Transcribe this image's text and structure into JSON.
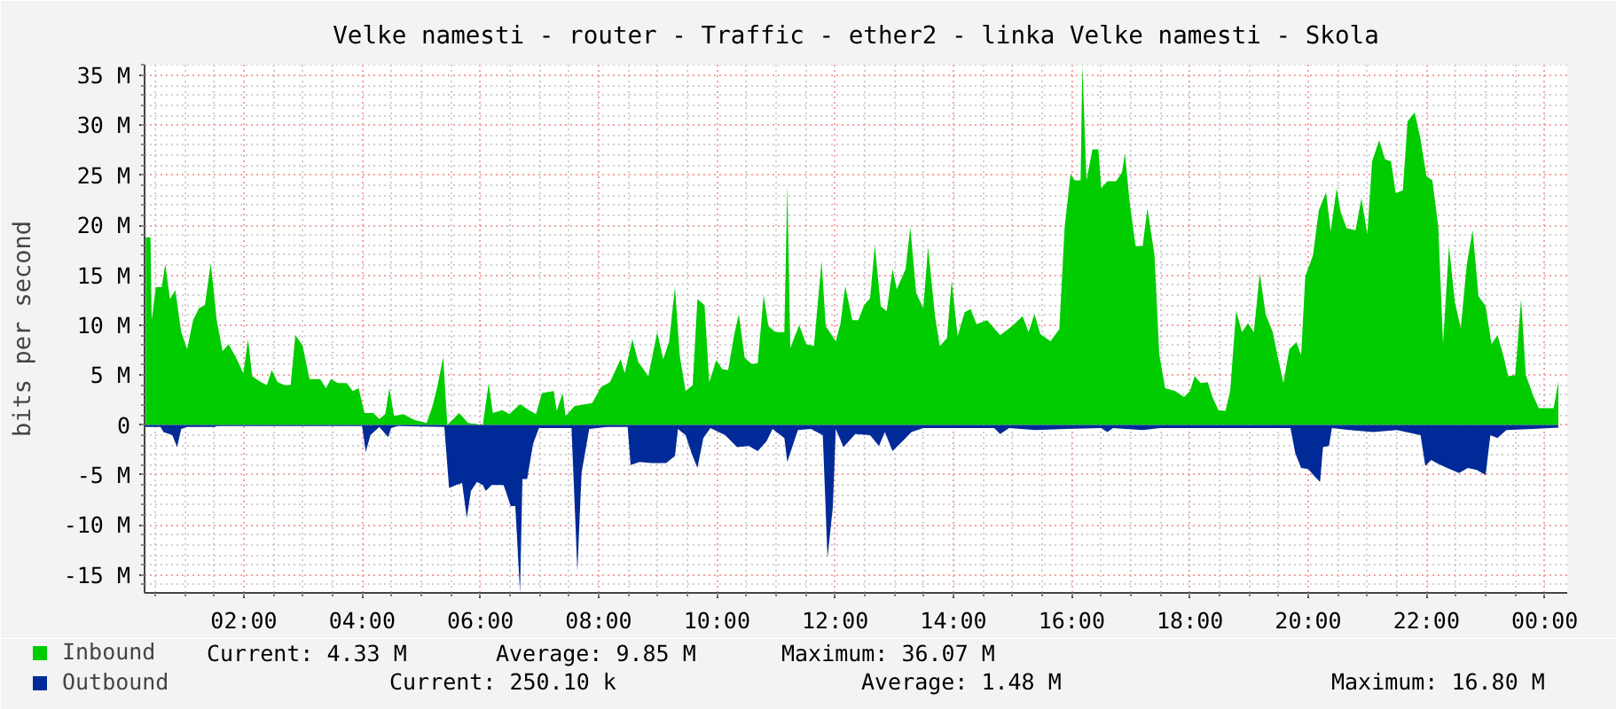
{
  "chart_data": {
    "type": "area",
    "title": "Velke namesti - router - Traffic - ether2 - linka Velke namesti - Skola",
    "ylabel": "bits per second",
    "xlim": [
      0.32,
      24.38
    ],
    "ylim": [
      -16.8,
      36.07
    ],
    "xticks": [
      {
        "value": 2,
        "label": "02:00"
      },
      {
        "value": 4,
        "label": "04:00"
      },
      {
        "value": 6,
        "label": "06:00"
      },
      {
        "value": 8,
        "label": "08:00"
      },
      {
        "value": 10,
        "label": "10:00"
      },
      {
        "value": 12,
        "label": "12:00"
      },
      {
        "value": 14,
        "label": "14:00"
      },
      {
        "value": 16,
        "label": "16:00"
      },
      {
        "value": 18,
        "label": "18:00"
      },
      {
        "value": 20,
        "label": "20:00"
      },
      {
        "value": 22,
        "label": "22:00"
      },
      {
        "value": 24,
        "label": "00:00"
      }
    ],
    "yticks": [
      {
        "value": -15,
        "label": "-15 M"
      },
      {
        "value": -10,
        "label": "-10 M"
      },
      {
        "value": -5,
        "label": "-5 M"
      },
      0,
      {
        "value": 5,
        "label": "5 M"
      },
      {
        "value": 10,
        "label": "10 M"
      },
      {
        "value": 15,
        "label": "15 M"
      },
      {
        "value": 20,
        "label": "20 M"
      },
      {
        "value": 25,
        "label": "25 M"
      },
      {
        "value": 30,
        "label": "30 M"
      },
      {
        "value": 35,
        "label": "35 M"
      }
    ],
    "grid": true,
    "legend": "bottom left",
    "series": [
      {
        "name": "Inbound",
        "color": "#00cc00",
        "x": [
          0.34,
          0.42,
          0.44,
          0.51,
          0.61,
          0.67,
          0.75,
          0.84,
          0.94,
          1.04,
          1.14,
          1.24,
          1.34,
          1.44,
          1.54,
          1.64,
          1.74,
          1.87,
          1.99,
          2.07,
          2.14,
          2.29,
          2.39,
          2.47,
          2.57,
          2.69,
          2.79,
          2.87,
          2.99,
          3.11,
          3.29,
          3.39,
          3.47,
          3.59,
          3.74,
          3.84,
          3.94,
          4.04,
          4.19,
          4.29,
          4.39,
          4.46,
          4.54,
          4.69,
          4.89,
          5.09,
          5.19,
          5.27,
          5.37,
          5.44,
          5.64,
          5.79,
          6.04,
          6.14,
          6.21,
          6.37,
          6.49,
          6.67,
          6.82,
          6.94,
          7.04,
          7.24,
          7.29,
          7.39,
          7.44,
          7.59,
          7.89,
          8.04,
          8.19,
          8.37,
          8.44,
          8.57,
          8.67,
          8.84,
          8.99,
          9.09,
          9.19,
          9.29,
          9.37,
          9.47,
          9.59,
          9.67,
          9.79,
          9.87,
          9.99,
          10.09,
          10.19,
          10.29,
          10.37,
          10.47,
          10.59,
          10.69,
          10.79,
          10.87,
          10.99,
          11.14,
          11.19,
          11.24,
          11.39,
          11.51,
          11.64,
          11.77,
          11.84,
          12.01,
          12.09,
          12.17,
          12.29,
          12.39,
          12.49,
          12.59,
          12.67,
          12.77,
          12.87,
          12.97,
          13.04,
          13.19,
          13.27,
          13.37,
          13.49,
          13.57,
          13.69,
          13.77,
          13.89,
          13.97,
          14.07,
          14.19,
          14.29,
          14.39,
          14.57,
          14.79,
          14.99,
          15.17,
          15.27,
          15.37,
          15.47,
          15.64,
          15.79,
          15.88,
          15.98,
          16.05,
          16.15,
          16.18,
          16.25,
          16.35,
          16.45,
          16.5,
          16.6,
          16.75,
          16.85,
          16.9,
          16.98,
          17.08,
          17.2,
          17.28,
          17.4,
          17.48,
          17.58,
          17.75,
          17.9,
          18.0,
          18.08,
          18.18,
          18.3,
          18.38,
          18.48,
          18.6,
          18.68,
          18.78,
          18.88,
          18.98,
          19.08,
          19.18,
          19.28,
          19.4,
          19.5,
          19.58,
          19.68,
          19.8,
          19.88,
          19.95,
          20.08,
          20.18,
          20.3,
          20.38,
          20.48,
          20.55,
          20.65,
          20.8,
          20.9,
          21.0,
          21.08,
          21.2,
          21.3,
          21.4,
          21.48,
          21.6,
          21.68,
          21.8,
          21.9,
          22.0,
          22.1,
          22.2,
          22.28,
          22.38,
          22.48,
          22.58,
          22.68,
          22.78,
          22.88,
          23.0,
          23.1,
          23.2,
          23.3,
          23.38,
          23.5,
          23.6,
          23.68,
          23.8,
          23.9,
          24.05,
          24.15,
          24.23
        ],
        "values": [
          18.8,
          18.8,
          10.5,
          13.8,
          13.8,
          16.1,
          12.6,
          13.5,
          9.3,
          7.6,
          10.5,
          11.7,
          12.0,
          16.2,
          10.5,
          7.4,
          8.1,
          6.7,
          5.2,
          8.6,
          4.9,
          4.3,
          4.0,
          5.5,
          4.3,
          4.0,
          4.0,
          9.0,
          8.0,
          4.6,
          4.6,
          3.7,
          4.6,
          4.2,
          4.2,
          3.4,
          3.7,
          1.2,
          1.2,
          0.6,
          1.1,
          3.7,
          0.9,
          1.1,
          0.5,
          0.2,
          1.9,
          3.8,
          6.8,
          0,
          1.2,
          0.2,
          0,
          4.2,
          1.2,
          1.5,
          1.1,
          2.1,
          1.5,
          1.1,
          3.2,
          3.4,
          1.4,
          3.2,
          0.9,
          1.9,
          2.2,
          3.8,
          4.3,
          6.6,
          5.2,
          8.6,
          6.3,
          4.9,
          9.3,
          6.6,
          8.3,
          13.8,
          7.0,
          3.4,
          4.0,
          12.6,
          12.0,
          4.3,
          6.5,
          5.6,
          5.5,
          9.0,
          11.1,
          6.7,
          6.1,
          6.2,
          13.0,
          9.9,
          9.3,
          9.3,
          24.1,
          7.7,
          10.0,
          8.1,
          7.9,
          16.4,
          9.9,
          8.4,
          10.2,
          13.9,
          10.5,
          10.5,
          12.0,
          12.7,
          18.0,
          11.9,
          11.4,
          15.6,
          13.6,
          15.6,
          19.8,
          13.2,
          11.7,
          17.8,
          10.8,
          7.9,
          8.7,
          14.5,
          8.9,
          11.3,
          11.6,
          10.1,
          10.5,
          9.0,
          9.9,
          10.9,
          9.3,
          11.1,
          9.1,
          8.4,
          9.6,
          19.8,
          25.1,
          24.5,
          24.5,
          36.07,
          24.5,
          27.6,
          27.6,
          23.7,
          24.4,
          24.4,
          25.3,
          27.2,
          22.3,
          17.9,
          17.9,
          21.7,
          17.0,
          7.1,
          3.7,
          3.4,
          2.8,
          3.4,
          4.9,
          4.2,
          4.3,
          2.8,
          1.5,
          1.4,
          3.4,
          11.4,
          9.3,
          10.2,
          9.3,
          15.2,
          11.1,
          9.3,
          6.4,
          4.2,
          7.6,
          8.3,
          7.0,
          14.9,
          17.0,
          21.5,
          23.3,
          19.4,
          23.7,
          21.3,
          19.7,
          19.5,
          22.7,
          19.1,
          26.4,
          28.5,
          26.6,
          26.4,
          23.2,
          23.5,
          30.4,
          31.3,
          28.6,
          24.9,
          24.5,
          19.8,
          8.1,
          17.9,
          12.3,
          9.7,
          16.0,
          19.5,
          12.9,
          11.9,
          8.1,
          9.0,
          7.0,
          4.9,
          5.0,
          12.6,
          5.0,
          3.0,
          1.7,
          1.7,
          1.7,
          4.33
        ]
      },
      {
        "name": "Outbound",
        "color": "#002a97",
        "x": [
          0.32,
          0.59,
          0.64,
          0.79,
          0.87,
          0.94,
          1.04,
          1.5,
          1.55,
          4.0,
          4.06,
          4.14,
          4.29,
          4.44,
          4.49,
          4.6,
          5.39,
          5.47,
          5.59,
          5.69,
          5.77,
          5.84,
          5.94,
          6.04,
          6.09,
          6.19,
          6.39,
          6.44,
          6.51,
          6.59,
          6.67,
          6.71,
          6.79,
          6.89,
          6.99,
          7.54,
          7.64,
          7.71,
          7.84,
          8.14,
          8.49,
          8.54,
          8.69,
          8.89,
          9.14,
          9.29,
          9.34,
          9.47,
          9.57,
          9.67,
          9.77,
          9.89,
          10.14,
          10.34,
          10.54,
          10.69,
          10.84,
          10.94,
          11.14,
          11.19,
          11.29,
          11.37,
          11.59,
          11.79,
          11.87,
          11.96,
          12.01,
          12.14,
          12.34,
          12.59,
          12.74,
          12.84,
          12.97,
          13.14,
          13.29,
          13.49,
          14.69,
          14.79,
          14.94,
          15.39,
          15.89,
          16.5,
          16.6,
          16.7,
          17.2,
          17.5,
          19.7,
          19.78,
          19.88,
          20.0,
          20.1,
          20.2,
          20.25,
          20.35,
          20.4,
          20.7,
          21.1,
          21.5,
          21.9,
          21.98,
          22.08,
          22.2,
          22.35,
          22.55,
          22.7,
          22.85,
          23.0,
          23.08,
          23.2,
          23.35,
          23.8,
          24.23
        ],
        "values": [
          -0.2,
          -0.2,
          -0.7,
          -1.0,
          -2.2,
          -0.4,
          -0.2,
          -0.2,
          -0.1,
          -0.1,
          -2.7,
          -1.0,
          -0.2,
          -1.2,
          -0.3,
          -0.1,
          -0.2,
          -6.3,
          -6.0,
          -5.8,
          -9.3,
          -6.6,
          -5.7,
          -6.0,
          -6.6,
          -6.0,
          -6.0,
          -6.8,
          -8.1,
          -8.1,
          -16.8,
          -5.4,
          -5.4,
          -1.9,
          -0.3,
          -0.3,
          -14.6,
          -4.8,
          -0.4,
          -0.2,
          -0.2,
          -4.0,
          -3.7,
          -3.8,
          -3.8,
          -3.1,
          -0.4,
          -1.0,
          -2.8,
          -4.3,
          -1.3,
          -0.3,
          -1.0,
          -2.2,
          -2.1,
          -2.6,
          -1.6,
          -0.4,
          -1.3,
          -3.7,
          -1.9,
          -0.5,
          -0.4,
          -1.0,
          -13.3,
          -8.2,
          -0.4,
          -2.2,
          -0.9,
          -1.0,
          -2.1,
          -0.7,
          -2.6,
          -1.6,
          -0.7,
          -0.3,
          -0.3,
          -0.9,
          -0.3,
          -0.5,
          -0.4,
          -0.3,
          -0.7,
          -0.3,
          -0.5,
          -0.3,
          -0.3,
          -2.8,
          -4.3,
          -4.4,
          -5.1,
          -5.7,
          -2.2,
          -2.1,
          -0.3,
          -0.5,
          -0.7,
          -0.5,
          -1.0,
          -4.1,
          -3.5,
          -3.9,
          -4.3,
          -4.8,
          -4.3,
          -4.5,
          -5.0,
          -1.0,
          -1.3,
          -0.5,
          -0.4,
          -0.2501
        ]
      }
    ],
    "annotations": [
      "Current: 4.33 M",
      "Average: 9.85 M",
      "Maximum: 36.07 M",
      "Current: 250.10 k",
      "Average: 1.48 M",
      "Maximum: 16.80 M"
    ]
  }
}
